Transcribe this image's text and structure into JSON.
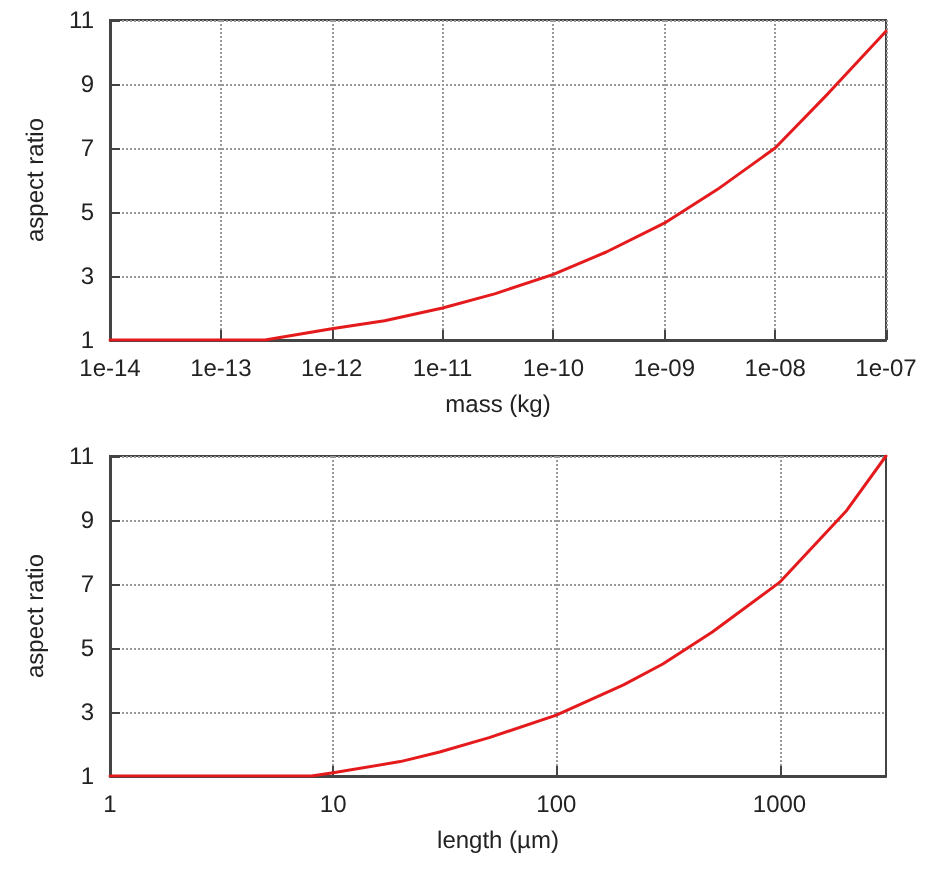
{
  "chart_data": [
    {
      "type": "line",
      "xlabel": "mass (kg)",
      "ylabel": "aspect ratio",
      "log": "x",
      "grid": true,
      "marker": "none",
      "line_style": "solid",
      "xlim": [
        1e-14,
        1e-07
      ],
      "xticks": [
        {
          "value": 1e-14,
          "label": "1e-14"
        },
        {
          "value": 1e-13,
          "label": "1e-13"
        },
        {
          "value": 1e-12,
          "label": "1e-12"
        },
        {
          "value": 1e-11,
          "label": "1e-11"
        },
        {
          "value": 1e-10,
          "label": "1e-10"
        },
        {
          "value": 1e-09,
          "label": "1e-09"
        },
        {
          "value": 1e-08,
          "label": "1e-08"
        },
        {
          "value": 1e-07,
          "label": "1e-07"
        }
      ],
      "ylim": [
        1,
        11
      ],
      "yticks": [
        1,
        3,
        5,
        7,
        9,
        11
      ],
      "x": [
        1e-14,
        1e-13,
        2.5e-13,
        1e-12,
        3e-12,
        1e-11,
        3e-11,
        1e-10,
        3e-10,
        1e-09,
        3e-09,
        1e-08,
        3e-08,
        1e-07
      ],
      "series": [
        {
          "color": "#e41a1c",
          "values": [
            1,
            1,
            1,
            1.35,
            1.6,
            2.0,
            2.45,
            3.05,
            3.75,
            4.65,
            5.7,
            7.0,
            8.7,
            10.65
          ]
        }
      ]
    },
    {
      "type": "line",
      "xlabel": "length (µm)",
      "ylabel": "aspect ratio",
      "log": "x",
      "grid": true,
      "marker": "none",
      "line_style": "solid",
      "xlim": [
        1,
        3000
      ],
      "xticks": [
        1,
        10,
        100,
        1000
      ],
      "ylim": [
        1,
        11
      ],
      "yticks": [
        1,
        3,
        5,
        7,
        9,
        11
      ],
      "x": [
        1,
        3,
        8,
        10,
        20,
        30,
        50,
        100,
        200,
        300,
        500,
        1000,
        2000,
        3000
      ],
      "series": [
        {
          "color": "#e41a1c",
          "values": [
            1,
            1,
            1,
            1.1,
            1.45,
            1.75,
            2.2,
            2.9,
            3.85,
            4.5,
            5.5,
            7.05,
            9.3,
            11
          ]
        }
      ]
    }
  ]
}
